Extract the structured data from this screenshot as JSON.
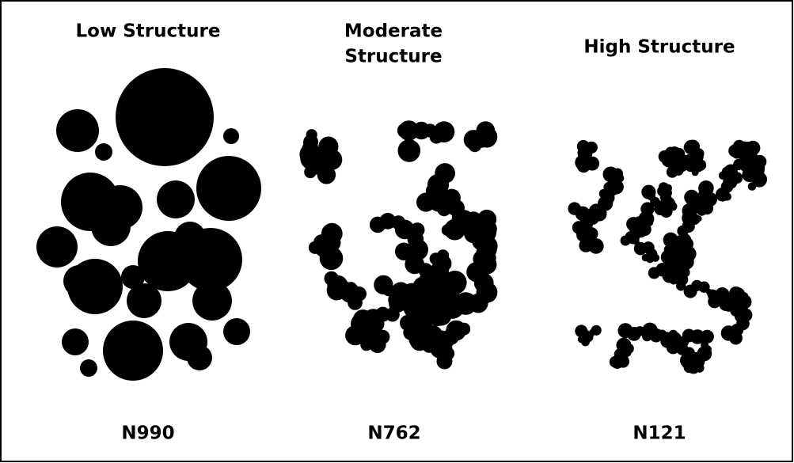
{
  "panels": [
    {
      "title": "Low Structure",
      "label": "N990"
    },
    {
      "title": [
        "Moderate",
        "Structure"
      ],
      "label": "N762"
    },
    {
      "title": "High Structure",
      "label": "N121"
    }
  ]
}
